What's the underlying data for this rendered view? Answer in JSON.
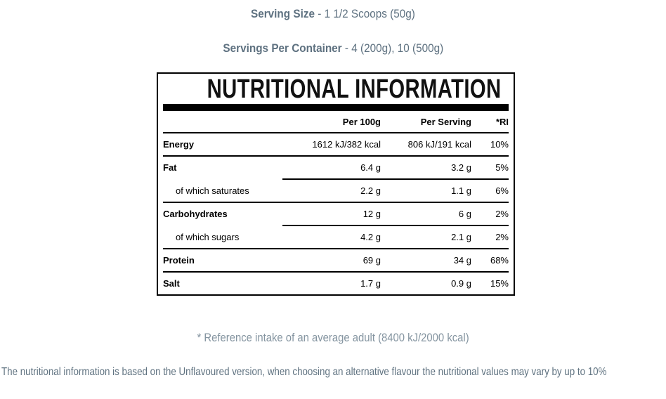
{
  "page": {
    "serving_size": {
      "label": "Serving Size",
      "value": "- 1 1/2 Scoops (50g)"
    },
    "servings_per_container": {
      "label": "Servings Per Container",
      "value": "- 4 (200g), 10 (500g)"
    },
    "reference_note": "* Reference intake of an average adult (8400 kJ/2000 kcal)",
    "variation_note": "The nutritional information is based on the Unflavoured version, when choosing an alternative flavour the nutritional values may vary by up to 10%"
  },
  "table": {
    "title": "NUTRITIONAL INFORMATION",
    "columns": {
      "per_100g": "Per 100g",
      "per_serving": "Per Serving",
      "ri": "*RI"
    },
    "rows": [
      {
        "label": "Energy",
        "per_100g": "1612 kJ/382 kcal",
        "per_serving": "806 kJ/191 kcal",
        "ri": "10%"
      },
      {
        "label": "Fat",
        "per_100g": "6.4 g",
        "per_serving": "3.2 g",
        "ri": "5%"
      },
      {
        "label": "of which saturates",
        "per_100g": "2.2 g",
        "per_serving": "1.1 g",
        "ri": "6%"
      },
      {
        "label": "Carbohydrates",
        "per_100g": "12 g",
        "per_serving": "6 g",
        "ri": "2%"
      },
      {
        "label": "of which sugars",
        "per_100g": "4.2 g",
        "per_serving": "2.1 g",
        "ri": "2%"
      },
      {
        "label": "Protein",
        "per_100g": "69 g",
        "per_serving": "34 g",
        "ri": "68%"
      },
      {
        "label": "Salt",
        "per_100g": "1.7 g",
        "per_serving": "0.9 g",
        "ri": "15%"
      }
    ]
  },
  "colors": {
    "heading_text": "#5e7180",
    "table_border": "#000000",
    "table_text": "#000000",
    "reference_note_text": "#8494a0",
    "variation_note_text": "#5f7280"
  }
}
